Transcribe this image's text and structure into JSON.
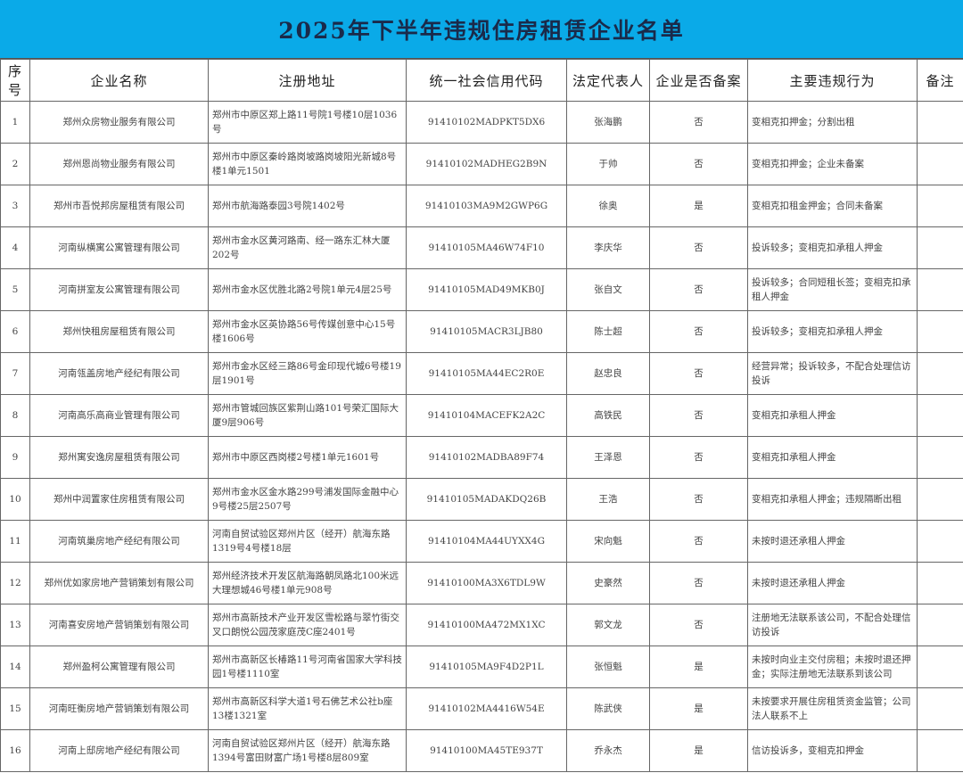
{
  "title": "2025年下半年违规住房租赁企业名单",
  "headers": [
    "序号",
    "企业名称",
    "注册地址",
    "统一社会信用代码",
    "法定代表人",
    "企业是否备案",
    "主要违规行为",
    "备注"
  ],
  "rows": [
    {
      "no": "1",
      "name": "郑州众房物业服务有限公司",
      "address": "郑州市中原区郑上路11号院1号楼10层1036号",
      "code": "91410102MADPKT5DX6",
      "rep": "张海鹏",
      "filed": "否",
      "violation": "变相克扣押金；分割出租",
      "note": ""
    },
    {
      "no": "2",
      "name": "郑州恩尚物业服务有限公司",
      "address": "郑州市中原区秦岭路岗坡路岗坡阳光新城8号楼1单元1501",
      "code": "91410102MADHEG2B9N",
      "rep": "于帅",
      "filed": "否",
      "violation": "变相克扣押金；企业未备案",
      "note": ""
    },
    {
      "no": "3",
      "name": "郑州市吾悦邦房屋租赁有限公司",
      "address": "郑州市航海路泰园3号院1402号",
      "code": "91410103MA9M2GWP6G",
      "rep": "徐奥",
      "filed": "是",
      "violation": "变相克扣租金押金；合同未备案",
      "note": ""
    },
    {
      "no": "4",
      "name": "河南纵横寓公寓管理有限公司",
      "address": "郑州市金水区黄河路南、经一路东汇林大厦202号",
      "code": "91410105MA46W74F10",
      "rep": "李庆华",
      "filed": "否",
      "violation": "投诉较多；变相克扣承租人押金",
      "note": ""
    },
    {
      "no": "5",
      "name": "河南拼室友公寓管理有限公司",
      "address": "郑州市金水区优胜北路2号院1单元4层25号",
      "code": "91410105MAD49MKB0J",
      "rep": "张自文",
      "filed": "否",
      "violation": "投诉较多；合同短租长签；变相克扣承租人押金",
      "note": ""
    },
    {
      "no": "6",
      "name": "郑州快租房屋租赁有限公司",
      "address": "郑州市金水区英协路56号传媒创意中心15号楼1606号",
      "code": "91410105MACR3LJB80",
      "rep": "陈士超",
      "filed": "否",
      "violation": "投诉较多；变相克扣承租人押金",
      "note": ""
    },
    {
      "no": "7",
      "name": "河南瓴盖房地产经纪有限公司",
      "address": "郑州市金水区经三路86号金印现代城6号楼19层1901号",
      "code": "91410105MA44EC2R0E",
      "rep": "赵忠良",
      "filed": "否",
      "violation": "经营异常；投诉较多，不配合处理信访投诉",
      "note": ""
    },
    {
      "no": "8",
      "name": "河南高乐高商业管理有限公司",
      "address": "郑州市管城回族区紫荆山路101号荣汇国际大厦9层906号",
      "code": "91410104MACEFK2A2C",
      "rep": "高铁民",
      "filed": "否",
      "violation": "变相克扣承租人押金",
      "note": ""
    },
    {
      "no": "9",
      "name": "郑州寓安逸房屋租赁有限公司",
      "address": "郑州市中原区西岗楼2号楼1单元1601号",
      "code": "91410102MADBA89F74",
      "rep": "王泽恩",
      "filed": "否",
      "violation": "变相克扣承租人押金",
      "note": ""
    },
    {
      "no": "10",
      "name": "郑州中润置家住房租赁有限公司",
      "address": "郑州市金水区金水路299号浦发国际金融中心9号楼25层2507号",
      "code": "91410105MADAKDQ26B",
      "rep": "王浩",
      "filed": "否",
      "violation": "变相克扣承租人押金；违规隔断出租",
      "note": ""
    },
    {
      "no": "11",
      "name": "河南筑巢房地产经纪有限公司",
      "address": "河南自贸试验区郑州片区（经开）航海东路1319号4号楼18层",
      "code": "91410104MA44UYXX4G",
      "rep": "宋向魁",
      "filed": "否",
      "violation": "未按时退还承租人押金",
      "note": ""
    },
    {
      "no": "12",
      "name": "郑州优如家房地产营销策划有限公司",
      "address": "郑州经济技术开发区航海路朝凤路北100米远大理想城46号楼1单元908号",
      "code": "91410100MA3X6TDL9W",
      "rep": "史豪然",
      "filed": "否",
      "violation": "未按时退还承租人押金",
      "note": ""
    },
    {
      "no": "13",
      "name": "河南喜安房地产营销策划有限公司",
      "address": "郑州市高新技术产业开发区雪松路与翠竹街交叉口朗悦公园茂家庭茂C座2401号",
      "code": "91410100MA472MX1XC",
      "rep": "郭文龙",
      "filed": "否",
      "violation": "注册地无法联系该公司，不配合处理信访投诉",
      "note": ""
    },
    {
      "no": "14",
      "name": "郑州盈柯公寓管理有限公司",
      "address": "郑州市高新区长椿路11号河南省国家大学科技园1号楼1110室",
      "code": "91410105MA9F4D2P1L",
      "rep": "张恒魁",
      "filed": "是",
      "violation": "未按时向业主交付房租；未按时退还押金；实际注册地无法联系到该公司",
      "note": ""
    },
    {
      "no": "15",
      "name": "河南旺衡房地产营销策划有限公司",
      "address": "郑州市高新区科学大道1号石佛艺术公社b座13楼1321室",
      "code": "91410102MA4416W54E",
      "rep": "陈武侠",
      "filed": "是",
      "violation": "未按要求开展住房租赁资金监管；公司法人联系不上",
      "note": ""
    },
    {
      "no": "16",
      "name": "河南上邸房地产经纪有限公司",
      "address": "河南自贸试验区郑州片区（经开）航海东路1394号富田财富广场1号楼8层809室",
      "code": "91410100MA45TE937T",
      "rep": "乔永杰",
      "filed": "是",
      "violation": "信访投诉多，变相克扣押金",
      "note": ""
    }
  ]
}
